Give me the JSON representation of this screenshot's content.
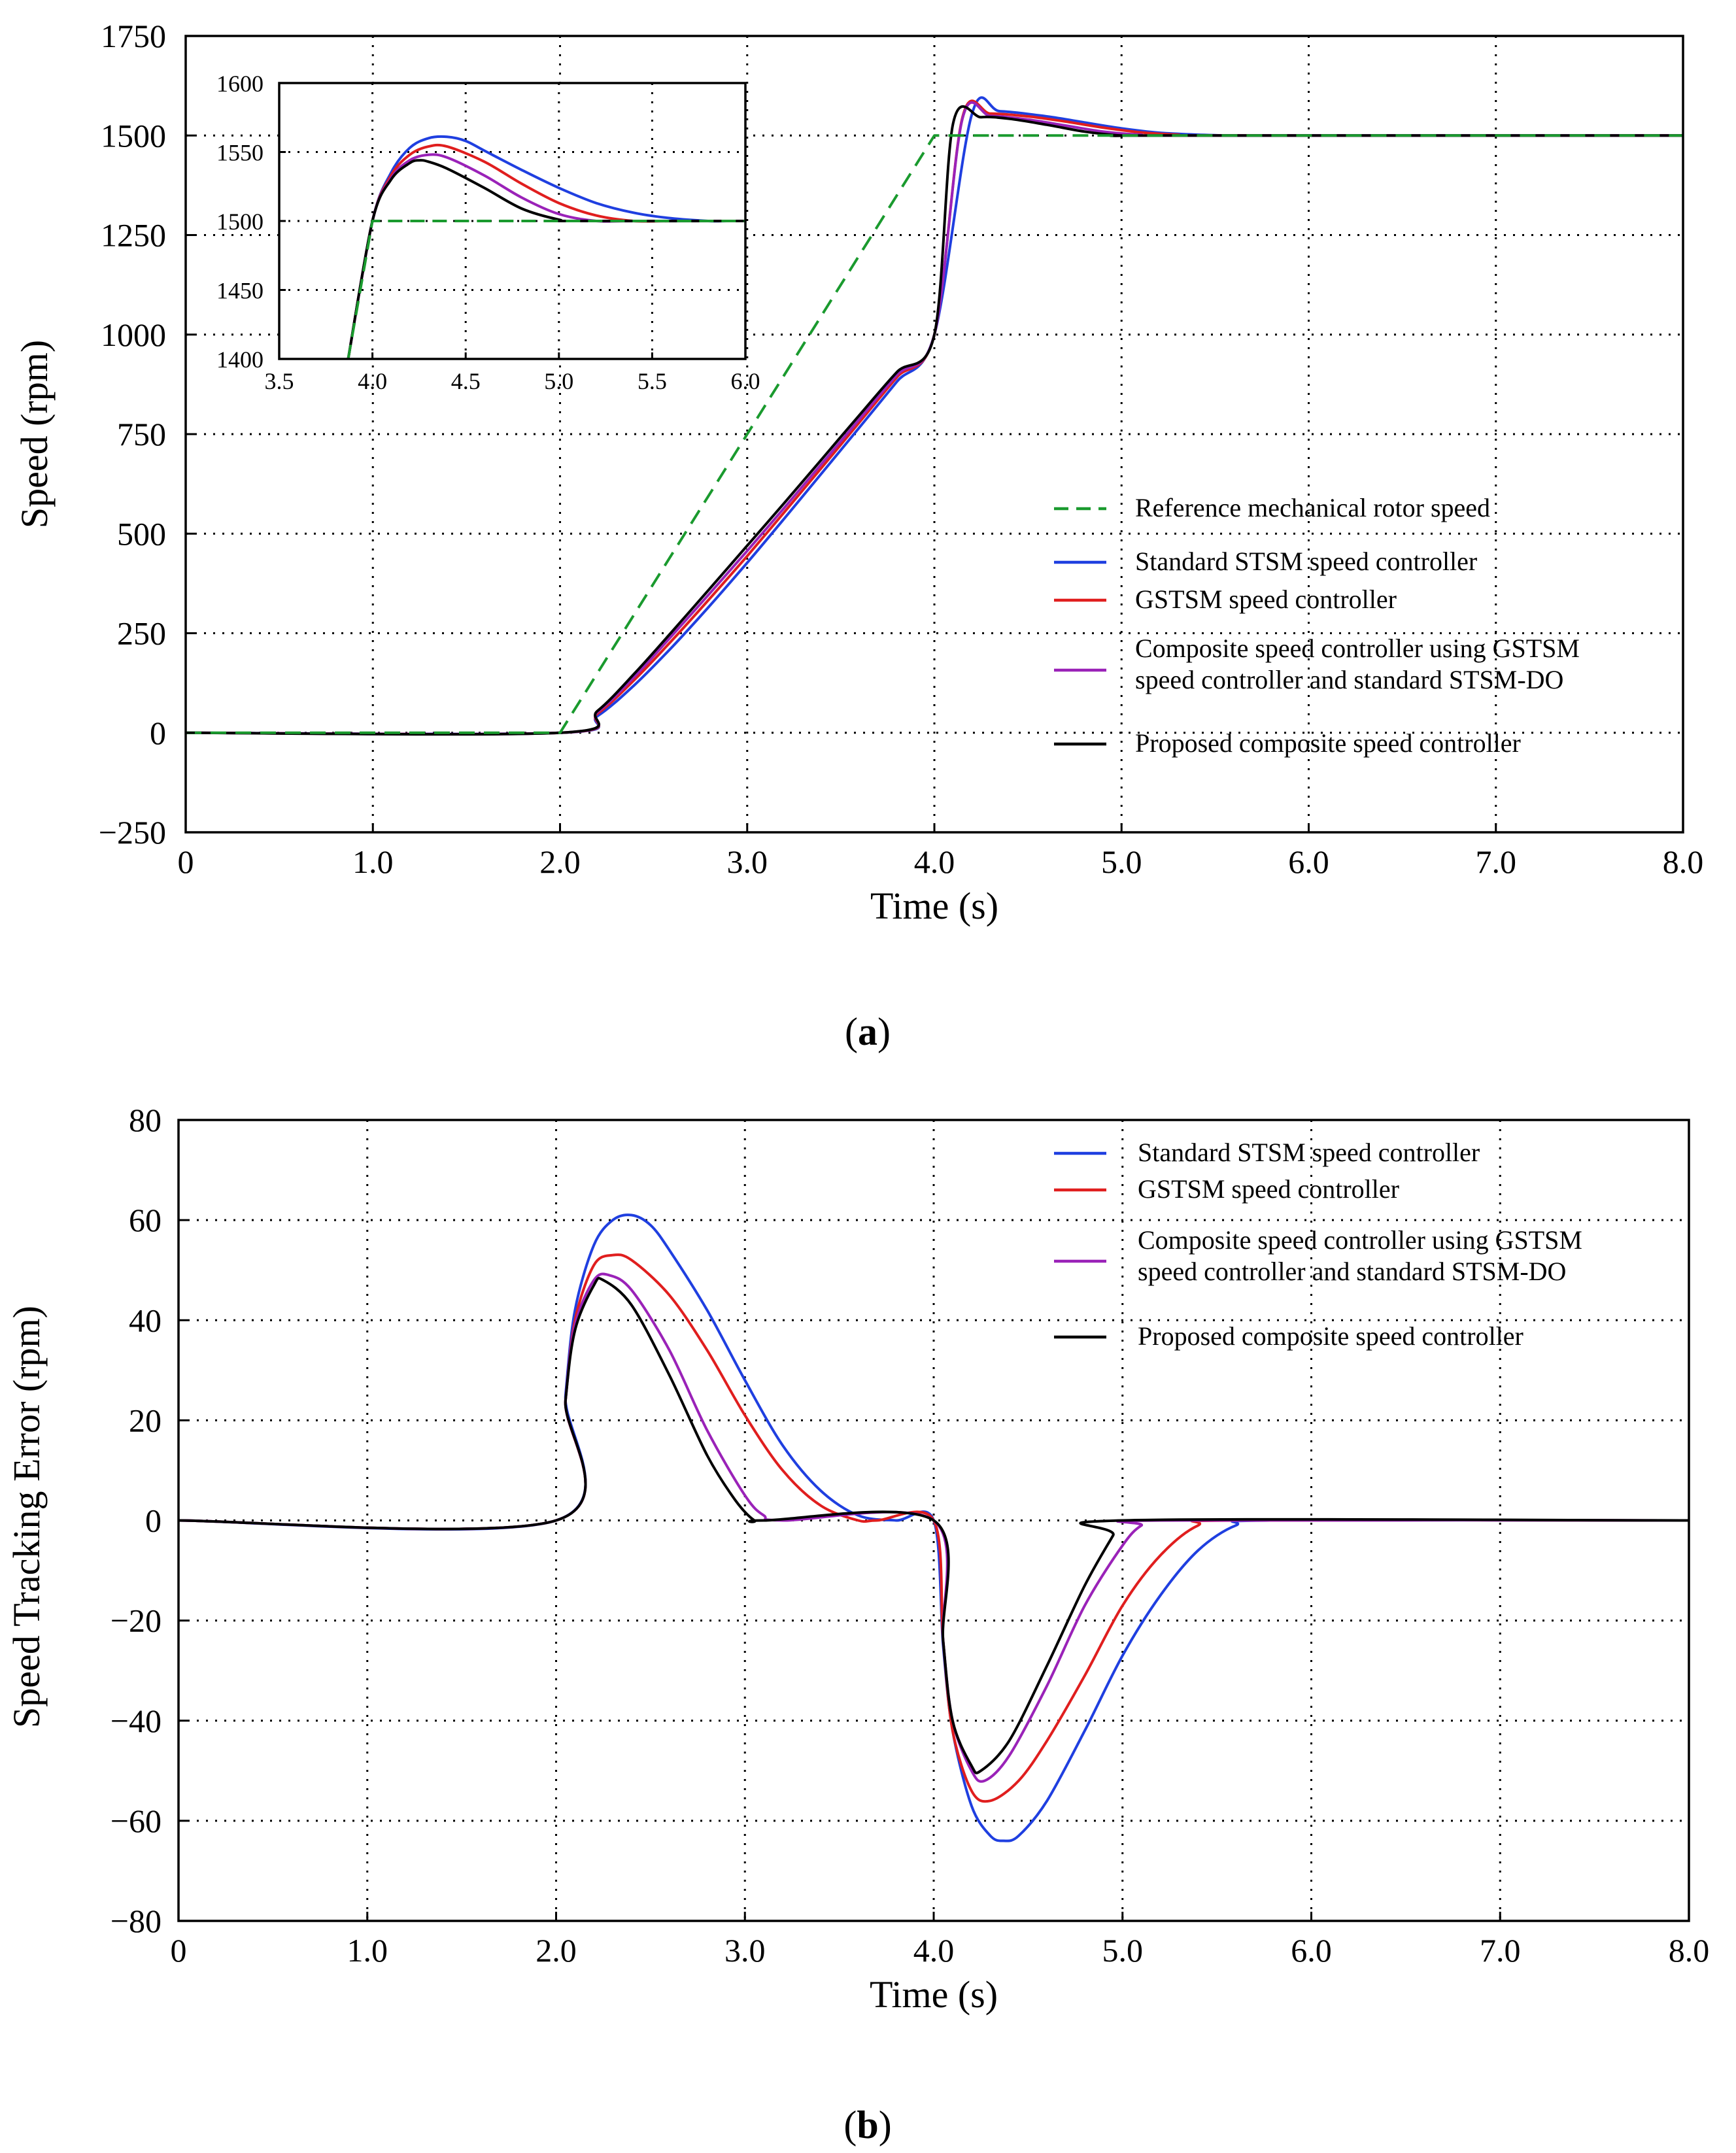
{
  "chart_data": [
    {
      "type": "line",
      "panel_label": "a",
      "xlabel": "Time (s)",
      "ylabel": "Speed (rpm)",
      "xlim": [
        0,
        8
      ],
      "ylim": [
        -250,
        1750
      ],
      "xticks": [
        0,
        1,
        2,
        3,
        4,
        5,
        6,
        7,
        8
      ],
      "xtick_labels": [
        "0",
        "1.0",
        "2.0",
        "3.0",
        "4.0",
        "5.0",
        "6.0",
        "7.0",
        "8.0"
      ],
      "yticks": [
        -250,
        0,
        250,
        500,
        750,
        1000,
        1250,
        1500,
        1750
      ],
      "ytick_labels": [
        "−250",
        "0",
        "250",
        "500",
        "750",
        "1000",
        "1250",
        "1500",
        "1750"
      ],
      "grid": true,
      "legend_position": "center-right",
      "series": [
        {
          "name": "Reference mechanical rotor speed",
          "color": "#1a9a2e",
          "style": "dashed",
          "x": [
            0,
            2.0,
            4.0,
            8.0
          ],
          "y": [
            0,
            0,
            1500,
            1500
          ]
        },
        {
          "name": "Standard STSM speed controller",
          "color": "#1f3fe0",
          "style": "solid",
          "x": [
            0,
            2.0,
            2.2,
            2.4,
            2.6,
            2.8,
            3.0,
            3.2,
            3.4,
            3.6,
            3.8,
            4.0,
            4.2,
            4.35,
            4.6,
            4.8,
            5.0,
            5.2,
            5.4,
            5.6,
            5.8,
            8.0
          ],
          "y": [
            0,
            0,
            42,
            121,
            216,
            319,
            427,
            539,
            653,
            767,
            882,
            1000,
            1553,
            1561,
            1548,
            1533,
            1518,
            1507,
            1502,
            1500,
            1500,
            1500
          ]
        },
        {
          "name": "GSTSM speed controller",
          "color": "#e01e1e",
          "style": "solid",
          "x": [
            0,
            2.0,
            2.2,
            2.4,
            2.6,
            2.8,
            3.0,
            3.2,
            3.4,
            3.6,
            3.8,
            4.0,
            4.15,
            4.3,
            4.5,
            4.7,
            4.9,
            5.1,
            5.3,
            5.5,
            8.0
          ],
          "y": [
            0,
            0,
            48,
            134,
            233,
            337,
            444,
            555,
            667,
            780,
            893,
            1000,
            1545,
            1555,
            1548,
            1535,
            1520,
            1508,
            1502,
            1500,
            1500
          ]
        },
        {
          "name": "Composite speed controller using GSTSM speed controller and standard STSM-DO",
          "color": "#9a22b8",
          "style": "solid",
          "x": [
            0,
            2.0,
            2.2,
            2.4,
            2.6,
            2.8,
            3.0,
            3.2,
            3.4,
            3.6,
            3.8,
            4.0,
            4.15,
            4.3,
            4.5,
            4.7,
            4.9,
            5.1,
            5.3,
            8.0
          ],
          "y": [
            0,
            0,
            52,
            142,
            245,
            350,
            457,
            566,
            677,
            788,
            899,
            1000,
            1542,
            1549,
            1540,
            1525,
            1510,
            1502,
            1500,
            1500
          ]
        },
        {
          "name": "Proposed composite speed controller",
          "color": "#000000",
          "style": "solid",
          "x": [
            0,
            2.0,
            2.2,
            2.4,
            2.6,
            2.8,
            3.0,
            3.2,
            3.4,
            3.6,
            3.8,
            4.0,
            4.1,
            4.25,
            4.4,
            4.6,
            4.8,
            5.0,
            5.2,
            8.0
          ],
          "y": [
            0,
            0,
            55,
            150,
            255,
            362,
            470,
            578,
            688,
            798,
            906,
            1000,
            1530,
            1546,
            1542,
            1527,
            1510,
            1500,
            1500,
            1500
          ]
        }
      ],
      "inset": {
        "xlim": [
          3.5,
          6.0
        ],
        "ylim": [
          1400,
          1600
        ],
        "xticks": [
          3.5,
          4.0,
          4.5,
          5.0,
          5.5,
          6.0
        ],
        "xtick_labels": [
          "3.5",
          "4.0",
          "4.5",
          "5.0",
          "5.5",
          "6.0"
        ],
        "yticks": [
          1400,
          1450,
          1500,
          1550,
          1600
        ],
        "ytick_labels": [
          "1400",
          "1450",
          "1500",
          "1550",
          "1600"
        ],
        "series": [
          {
            "name": "Reference mechanical rotor speed",
            "color": "#1a9a2e",
            "style": "dashed",
            "x": [
              3.87,
              4.0,
              6.0
            ],
            "y": [
              1400,
              1500,
              1500
            ]
          },
          {
            "name": "Standard STSM speed controller",
            "color": "#1f3fe0",
            "style": "solid",
            "x": [
              3.87,
              4.0,
              4.1,
              4.2,
              4.3,
              4.4,
              4.5,
              4.6,
              4.8,
              5.0,
              5.2,
              5.4,
              5.6,
              5.8,
              5.9,
              6.0
            ],
            "y": [
              1400,
              1500,
              1535,
              1553,
              1560,
              1561,
              1558,
              1551,
              1537,
              1524,
              1513,
              1506,
              1502,
              1500,
              1500,
              1500
            ]
          },
          {
            "name": "GSTSM speed controller",
            "color": "#e01e1e",
            "style": "solid",
            "x": [
              3.87,
              4.0,
              4.1,
              4.2,
              4.3,
              4.4,
              4.6,
              4.8,
              5.0,
              5.2,
              5.4,
              5.6,
              6.0
            ],
            "y": [
              1400,
              1500,
              1533,
              1548,
              1554,
              1554,
              1543,
              1527,
              1513,
              1504,
              1500,
              1500,
              1500
            ]
          },
          {
            "name": "Composite speed controller using GSTSM speed controller and standard STSM-DO",
            "color": "#9a22b8",
            "style": "solid",
            "x": [
              3.87,
              4.0,
              4.1,
              4.2,
              4.3,
              4.4,
              4.6,
              4.8,
              5.0,
              5.2,
              5.4,
              6.0
            ],
            "y": [
              1400,
              1500,
              1531,
              1544,
              1548,
              1546,
              1533,
              1517,
              1505,
              1500,
              1500,
              1500
            ]
          },
          {
            "name": "Proposed composite speed controller",
            "color": "#000000",
            "style": "solid",
            "x": [
              3.87,
              4.0,
              4.1,
              4.2,
              4.25,
              4.3,
              4.4,
              4.6,
              4.8,
              5.0,
              5.1,
              6.0
            ],
            "y": [
              1400,
              1500,
              1530,
              1542,
              1544,
              1543,
              1538,
              1524,
              1509,
              1501,
              1500,
              1500
            ]
          }
        ]
      }
    },
    {
      "type": "line",
      "panel_label": "b",
      "xlabel": "Time (s)",
      "ylabel": "Speed Tracking Error (rpm)",
      "xlim": [
        0,
        8
      ],
      "ylim": [
        -80,
        80
      ],
      "xticks": [
        0,
        1,
        2,
        3,
        4,
        5,
        6,
        7,
        8
      ],
      "xtick_labels": [
        "0",
        "1.0",
        "2.0",
        "3.0",
        "4.0",
        "5.0",
        "6.0",
        "7.0",
        "8.0"
      ],
      "yticks": [
        -80,
        -60,
        -40,
        -20,
        0,
        20,
        40,
        60,
        80
      ],
      "ytick_labels": [
        "−80",
        "−60",
        "−40",
        "−20",
        "0",
        "20",
        "40",
        "60",
        "80"
      ],
      "grid": true,
      "legend_position": "top-right",
      "series": [
        {
          "name": "Standard STSM speed controller",
          "color": "#1f3fe0",
          "style": "solid",
          "x": [
            0,
            2.0,
            2.05,
            2.1,
            2.2,
            2.3,
            2.4,
            2.5,
            2.6,
            2.8,
            3.0,
            3.2,
            3.4,
            3.6,
            3.8,
            4.0,
            4.05,
            4.1,
            4.2,
            4.3,
            4.37,
            4.45,
            4.6,
            4.8,
            5.0,
            5.2,
            5.4,
            5.6,
            5.8,
            8.0
          ],
          "y": [
            0,
            0,
            25,
            42,
            55,
            60,
            61,
            59,
            54,
            42,
            28,
            15,
            6,
            1,
            0,
            0,
            -25,
            -42,
            -57,
            -63,
            -64,
            -63,
            -56,
            -42,
            -27,
            -15,
            -6,
            -1,
            0,
            0
          ]
        },
        {
          "name": "GSTSM speed controller",
          "color": "#e01e1e",
          "style": "solid",
          "x": [
            0,
            2.0,
            2.05,
            2.1,
            2.2,
            2.3,
            2.4,
            2.6,
            2.8,
            3.0,
            3.2,
            3.4,
            3.6,
            3.7,
            4.0,
            4.05,
            4.1,
            4.2,
            4.3,
            4.45,
            4.6,
            4.8,
            5.0,
            5.2,
            5.4,
            5.6,
            8.0
          ],
          "y": [
            0,
            0,
            24,
            40,
            51,
            53,
            52,
            45,
            34,
            21,
            10,
            3,
            0,
            0,
            0,
            -24,
            -42,
            -54,
            -56,
            -52,
            -44,
            -31,
            -17,
            -7,
            -1,
            0,
            0
          ]
        },
        {
          "name": "Composite speed controller using GSTSM speed controller and standard STSM-DO",
          "color": "#9a22b8",
          "style": "solid",
          "x": [
            0,
            2.0,
            2.05,
            2.1,
            2.2,
            2.28,
            2.4,
            2.6,
            2.8,
            3.0,
            3.1,
            3.2,
            4.0,
            4.05,
            4.1,
            4.2,
            4.27,
            4.4,
            4.6,
            4.8,
            5.0,
            5.1,
            5.2,
            8.0
          ],
          "y": [
            0,
            0,
            24,
            39,
            48,
            49,
            46,
            34,
            18,
            5,
            1,
            0,
            0,
            -24,
            -40,
            -50,
            -52,
            -47,
            -33,
            -17,
            -5,
            -1,
            0,
            0
          ]
        },
        {
          "name": "Proposed composite speed controller",
          "color": "#000000",
          "style": "solid",
          "x": [
            0,
            2.0,
            2.05,
            2.1,
            2.2,
            2.25,
            2.4,
            2.6,
            2.8,
            2.95,
            3.05,
            3.1,
            4.0,
            4.05,
            4.1,
            4.2,
            4.25,
            4.4,
            4.6,
            4.8,
            4.95,
            5.0,
            8.0
          ],
          "y": [
            0,
            0,
            24,
            38,
            47,
            48,
            43,
            29,
            13,
            4,
            0,
            0,
            0,
            -24,
            -40,
            -49,
            -50,
            -44,
            -29,
            -13,
            -3,
            0,
            0
          ]
        }
      ]
    }
  ]
}
